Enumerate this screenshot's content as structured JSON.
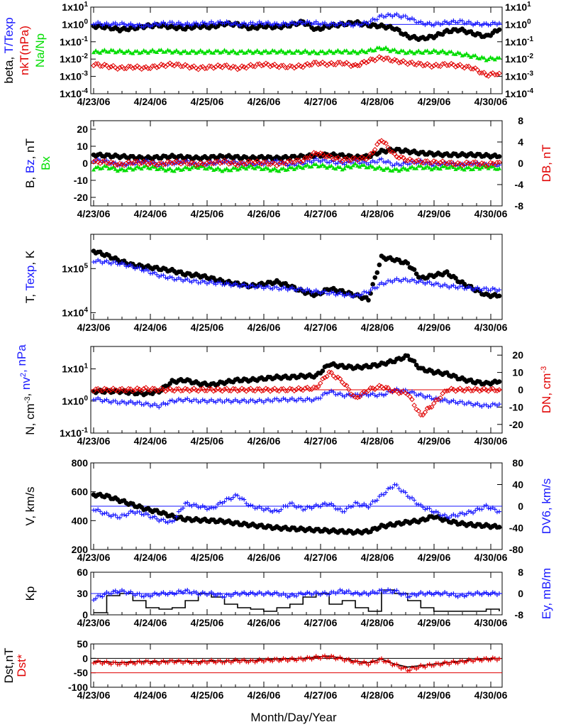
{
  "xlabel": "Month/Day/Year",
  "dates": [
    "4/23/06",
    "4/24/06",
    "4/25/06",
    "4/26/06",
    "4/27/06",
    "4/28/06",
    "4/29/06",
    "4/30/06"
  ],
  "colors": {
    "black": "#000000",
    "blue": "#1a1aff",
    "red": "#e00000",
    "green": "#00dd00"
  },
  "chart_data": [
    {
      "id": "p1",
      "type": "scatter",
      "yscale": "log",
      "ylim": [
        0.0001,
        10
      ],
      "ytick_labels": [
        "1x10-4",
        "1x10-3",
        "1x10-2",
        "1x10-1",
        "1x100",
        "1x101"
      ],
      "right_ytick_labels": [
        "1x10-4",
        "1x10-3",
        "1x10-2",
        "1x10-1",
        "1x100",
        "1x101"
      ],
      "ylabel_parts": [
        {
          "text": "beta, ",
          "color": "black"
        },
        {
          "text": "T/Texp",
          "color": "blue"
        },
        {
          "text": "nkT(nPa)",
          "color": "red"
        },
        {
          "text": "Na/Np",
          "color": "green"
        }
      ],
      "reference_line": {
        "value": 1,
        "color": "blue"
      },
      "series": [
        {
          "color": "black",
          "marker": "dot",
          "values": [
            0.8,
            0.7,
            0.5,
            0.6,
            0.8,
            0.9,
            0.7,
            0.6,
            0.8,
            0.7,
            1.1,
            1.0,
            0.6,
            0.8,
            0.7,
            0.9,
            1.4,
            0.5,
            0.8,
            1.0,
            1.3,
            0.9,
            0.8,
            0.6,
            0.2,
            0.15,
            0.2,
            0.4,
            0.5,
            0.3,
            0.2,
            0.5
          ]
        },
        {
          "color": "blue",
          "marker": "plus",
          "values": [
            1.2,
            1.0,
            1.1,
            0.9,
            0.8,
            1.1,
            1.2,
            1.0,
            1.1,
            1.2,
            1.3,
            1.0,
            1.1,
            1.2,
            1.0,
            1.1,
            1.3,
            1.2,
            1.0,
            1.1,
            0.9,
            1.3,
            3.0,
            3.5,
            2.5,
            1.2,
            1.0,
            1.3,
            1.5,
            1.1,
            1.0,
            1.2
          ]
        },
        {
          "color": "red",
          "marker": "diamond",
          "values": [
            0.005,
            0.004,
            0.003,
            0.0035,
            0.003,
            0.004,
            0.005,
            0.004,
            0.003,
            0.0035,
            0.004,
            0.003,
            0.004,
            0.005,
            0.004,
            0.0035,
            0.004,
            0.006,
            0.005,
            0.006,
            0.004,
            0.008,
            0.012,
            0.008,
            0.006,
            0.005,
            0.004,
            0.005,
            0.004,
            0.003,
            0.0012,
            0.0015
          ]
        },
        {
          "color": "green",
          "marker": "triangle",
          "values": [
            0.025,
            0.03,
            0.028,
            0.025,
            0.027,
            0.03,
            0.028,
            0.025,
            0.027,
            0.026,
            0.028,
            0.025,
            0.027,
            0.026,
            0.028,
            0.025,
            0.027,
            0.024,
            0.026,
            0.028,
            0.025,
            0.03,
            0.045,
            0.03,
            0.025,
            0.026,
            0.028,
            0.025,
            0.02,
            0.015,
            0.01,
            0.012
          ]
        }
      ]
    },
    {
      "id": "p2",
      "type": "scatter",
      "ylim": [
        -25,
        25
      ],
      "right_ylim": [
        -8,
        8
      ],
      "yticks": [
        -20,
        -10,
        0,
        10,
        20
      ],
      "right_yticks": [
        -8,
        -4,
        0,
        4,
        8
      ],
      "ylabel_parts": [
        {
          "text": "B, ",
          "color": "black"
        },
        {
          "text": "Bz",
          "color": "blue"
        },
        {
          "text": ", nT",
          "color": "black"
        },
        {
          "text": "Bx",
          "color": "green"
        }
      ],
      "right_ylabel_parts": [
        {
          "text": "DB, nT",
          "color": "red"
        }
      ],
      "series": [
        {
          "color": "black",
          "marker": "dot",
          "values": [
            5,
            4.5,
            4,
            3.5,
            3,
            3.5,
            4,
            3.5,
            3,
            3.5,
            4,
            3.5,
            3,
            3.5,
            3,
            3.5,
            4,
            4.5,
            5,
            4.5,
            3.5,
            4,
            7,
            8,
            7,
            6,
            5.5,
            5,
            5,
            5,
            4.5,
            4
          ]
        },
        {
          "color": "blue",
          "marker": "plus",
          "values": [
            2,
            1,
            -1,
            0,
            1,
            -1,
            0,
            1,
            -1,
            0,
            1,
            0,
            -1,
            0,
            1,
            -1,
            0,
            2,
            1,
            0,
            1,
            0,
            2,
            -1,
            0,
            1,
            -1,
            0,
            -1,
            0,
            -1,
            -1
          ]
        },
        {
          "color": "green",
          "marker": "triangle",
          "values": [
            -3,
            -2,
            -4,
            -3,
            -2,
            -3,
            -4,
            -3,
            -2,
            -3,
            -4,
            -3,
            -2,
            -3,
            -4,
            -3,
            -2,
            -1,
            -2,
            -3,
            -1,
            -2,
            -3,
            -4,
            -3,
            -2,
            -3,
            -2,
            -3,
            -3,
            -2,
            -3
          ]
        },
        {
          "color": "red",
          "marker": "diamond",
          "values": [
            0.3,
            0.2,
            -0.3,
            0.2,
            0.1,
            -0.2,
            0.2,
            0.1,
            -0.2,
            0.1,
            0.3,
            -0.2,
            0.2,
            0.1,
            -0.2,
            0.3,
            0.5,
            2.0,
            1.2,
            0.6,
            0.8,
            1.0,
            4.5,
            1.5,
            0.6,
            0.3,
            0.2,
            0.1,
            -0.2,
            0.1,
            -0.3,
            0.2
          ]
        }
      ]
    },
    {
      "id": "p3",
      "type": "scatter",
      "yscale": "log",
      "ylim": [
        7000,
        600000
      ],
      "ytick_labels": [
        "1x104",
        "1x105"
      ],
      "ylabel_parts": [
        {
          "text": "T, ",
          "color": "black"
        },
        {
          "text": "Texp",
          "color": "blue"
        },
        {
          "text": ", K",
          "color": "black"
        }
      ],
      "series": [
        {
          "color": "black",
          "marker": "dot",
          "values": [
            250000,
            200000,
            150000,
            120000,
            110000,
            100000,
            90000,
            75000,
            70000,
            60000,
            50000,
            45000,
            40000,
            45000,
            50000,
            40000,
            30000,
            25000,
            35000,
            30000,
            25000,
            20000,
            180000,
            160000,
            130000,
            60000,
            70000,
            80000,
            50000,
            35000,
            25000,
            24000
          ]
        },
        {
          "color": "blue",
          "marker": "plus",
          "values": [
            150000,
            140000,
            130000,
            110000,
            90000,
            70000,
            60000,
            55000,
            50000,
            48000,
            45000,
            42000,
            40000,
            38000,
            36000,
            35000,
            33000,
            30000,
            28000,
            26000,
            24000,
            30000,
            45000,
            55000,
            55000,
            50000,
            45000,
            40000,
            38000,
            35000,
            34000,
            33000
          ]
        }
      ]
    },
    {
      "id": "p4",
      "type": "scatter",
      "yscale": "log",
      "ylim": [
        0.1,
        50
      ],
      "right_ylim": [
        -25,
        25
      ],
      "ytick_labels": [
        "1x10-1",
        "1x100",
        "1x101"
      ],
      "right_yticks": [
        -20,
        -10,
        0,
        10,
        20
      ],
      "ylabel_parts": [
        {
          "text": "N, cm",
          "color": "black"
        },
        {
          "text": "-3",
          "color": "black",
          "sup": true
        },
        {
          "text": ", ",
          "color": "black"
        },
        {
          "text": "nv",
          "color": "blue"
        },
        {
          "text": "2",
          "color": "blue",
          "sup": true
        },
        {
          "text": ", nPa",
          "color": "blue"
        }
      ],
      "right_ylabel_parts": [
        {
          "text": "DN, cm",
          "color": "red"
        },
        {
          "text": "-3",
          "color": "red",
          "sup": true
        }
      ],
      "reference_line": {
        "value": 0,
        "color": "red",
        "axis": "right"
      },
      "series": [
        {
          "color": "black",
          "marker": "dot",
          "values": [
            2,
            2,
            2,
            1.8,
            1.7,
            2.0,
            4,
            4.5,
            3.5,
            3.2,
            3.8,
            4.5,
            4.5,
            5,
            5.5,
            5.5,
            6,
            6,
            14,
            12,
            11,
            12,
            14,
            18,
            25,
            10,
            8,
            7,
            5,
            4,
            3.5,
            4
          ]
        },
        {
          "color": "blue",
          "marker": "plus",
          "values": [
            1.2,
            1.0,
            0.9,
            0.9,
            0.8,
            0.7,
            1.0,
            1.1,
            1.0,
            1.0,
            1.0,
            1.0,
            1.0,
            1.0,
            1.1,
            1.1,
            1.1,
            1.1,
            2.0,
            1.5,
            1.5,
            1.6,
            1.5,
            2.2,
            2.0,
            1.5,
            1.2,
            1.0,
            0.9,
            0.8,
            0.7,
            0.8
          ]
        },
        {
          "color": "red",
          "marker": "diamond",
          "values": [
            0,
            0,
            0,
            0,
            0.5,
            0,
            0,
            0,
            0,
            0,
            0,
            0,
            0,
            0,
            0,
            0,
            0.5,
            1,
            10,
            5,
            -5,
            0,
            2,
            -1,
            -2,
            -15,
            -8,
            0,
            0,
            0,
            0,
            0
          ]
        }
      ]
    },
    {
      "id": "p5",
      "type": "scatter",
      "ylim": [
        200,
        800
      ],
      "right_ylim": [
        -80,
        80
      ],
      "yticks": [
        200,
        400,
        600,
        800
      ],
      "right_yticks": [
        -80,
        -40,
        0,
        40,
        80
      ],
      "ylabel_parts": [
        {
          "text": "V, km/s",
          "color": "black"
        }
      ],
      "right_ylabel_parts": [
        {
          "text": "DV6, km/s",
          "color": "blue"
        }
      ],
      "reference_line": {
        "value": 0,
        "color": "blue",
        "axis": "right"
      },
      "series": [
        {
          "color": "black",
          "marker": "dot",
          "values": [
            580,
            570,
            540,
            510,
            480,
            460,
            430,
            410,
            405,
            400,
            395,
            380,
            370,
            360,
            350,
            345,
            340,
            335,
            330,
            325,
            320,
            325,
            360,
            375,
            390,
            400,
            430,
            400,
            380,
            370,
            365,
            355
          ]
        },
        {
          "color": "blue",
          "marker": "plus",
          "values": [
            -5,
            -15,
            -20,
            -10,
            -15,
            -25,
            -30,
            5,
            0,
            -5,
            10,
            20,
            0,
            -5,
            -10,
            5,
            -5,
            0,
            5,
            -10,
            5,
            0,
            20,
            40,
            20,
            0,
            -10,
            -20,
            -15,
            -10,
            0,
            -10
          ]
        }
      ]
    },
    {
      "id": "p6",
      "type": "line",
      "ylim": [
        0,
        60
      ],
      "right_ylim": [
        -8,
        8
      ],
      "yticks": [
        0,
        30,
        60
      ],
      "right_yticks": [
        -8,
        0,
        8
      ],
      "ylabel_parts": [
        {
          "text": "Kp",
          "color": "black"
        }
      ],
      "right_ylabel_parts": [
        {
          "text": "Ey, mB/m",
          "color": "blue"
        }
      ],
      "reference_line": {
        "value": 0,
        "color": "blue",
        "axis": "right"
      },
      "series": [
        {
          "color": "black",
          "marker": "step",
          "values": [
            3,
            27,
            30,
            20,
            10,
            8,
            10,
            20,
            30,
            25,
            15,
            10,
            8,
            5,
            10,
            15,
            25,
            30,
            15,
            20,
            10,
            5,
            35,
            30,
            20,
            10,
            5,
            5,
            5,
            5,
            8,
            5
          ]
        },
        {
          "color": "blue",
          "marker": "plus",
          "values": [
            -2,
            0,
            1,
            0,
            -1,
            0,
            0,
            1,
            0,
            0,
            -1,
            0,
            0,
            0,
            0,
            -1,
            0,
            0,
            0,
            1,
            0,
            0,
            1,
            1,
            -1,
            0,
            0,
            0,
            -1,
            0,
            0,
            0
          ]
        }
      ]
    },
    {
      "id": "p7",
      "type": "scatter",
      "ylim": [
        -100,
        50
      ],
      "yticks": [
        -100,
        -50,
        0,
        50
      ],
      "ylabel_parts": [
        {
          "text": "Dst,nT",
          "color": "black"
        }
      ],
      "ylabel2_parts": [
        {
          "text": "Dst*",
          "color": "red"
        }
      ],
      "reference_lines": [
        {
          "value": 0,
          "color": "black"
        },
        {
          "value": -50,
          "color": "red"
        }
      ],
      "series": [
        {
          "color": "black",
          "marker": "line",
          "values": [
            -10,
            -12,
            -15,
            -12,
            -10,
            -12,
            -8,
            -10,
            -12,
            -8,
            -10,
            -6,
            -8,
            -5,
            -3,
            -2,
            0,
            5,
            8,
            0,
            -10,
            -15,
            -2,
            -20,
            -30,
            -25,
            -20,
            -15,
            -10,
            -5,
            -2,
            0
          ]
        },
        {
          "color": "red",
          "marker": "plus",
          "values": [
            -12,
            -15,
            -18,
            -15,
            -12,
            -14,
            -10,
            -12,
            -14,
            -10,
            -12,
            -8,
            -10,
            -7,
            -5,
            -4,
            -2,
            3,
            6,
            -2,
            -12,
            -18,
            -4,
            -22,
            -40,
            -28,
            -22,
            -16,
            -12,
            -6,
            -3,
            -1
          ]
        }
      ]
    }
  ]
}
